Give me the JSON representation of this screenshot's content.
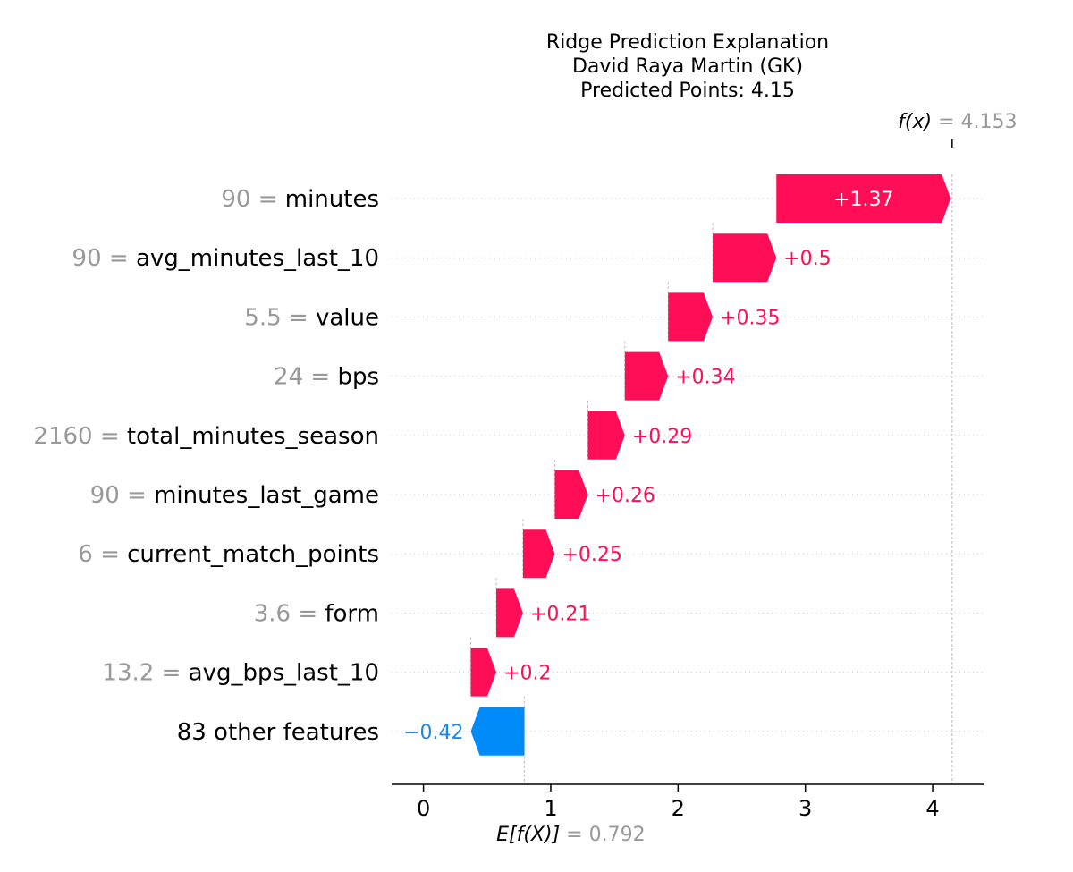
{
  "chart_data": {
    "type": "waterfall",
    "title": "Ridge Prediction Explanation",
    "subtitle_lines": [
      "David Raya Martin (GK)",
      "Predicted Points: 4.15"
    ],
    "base_value": 0.792,
    "base_label_symbol": "E[f(X)]",
    "base_label_value": "= 0.792",
    "final_value": 4.153,
    "final_label_symbol": "f(x)",
    "final_label_value": "= 4.153",
    "xlim": [
      -0.25,
      4.4
    ],
    "x_ticks": [
      0,
      1,
      2,
      3,
      4
    ],
    "x_tick_labels": [
      "0",
      "1",
      "2",
      "3",
      "4"
    ],
    "colors": {
      "positive": "#ff0d57",
      "negative": "#008bfb"
    },
    "features": [
      {
        "value_text": "90 =",
        "name": "minutes",
        "contribution": 1.37,
        "label": "+1.37"
      },
      {
        "value_text": "90 =",
        "name": "avg_minutes_last_10",
        "contribution": 0.5,
        "label": "+0.5"
      },
      {
        "value_text": "5.5 =",
        "name": "value",
        "contribution": 0.35,
        "label": "+0.35"
      },
      {
        "value_text": "24 =",
        "name": "bps",
        "contribution": 0.34,
        "label": "+0.34"
      },
      {
        "value_text": "2160 =",
        "name": "total_minutes_season",
        "contribution": 0.29,
        "label": "+0.29"
      },
      {
        "value_text": "90 =",
        "name": "minutes_last_game",
        "contribution": 0.26,
        "label": "+0.26"
      },
      {
        "value_text": "6 =",
        "name": "current_match_points",
        "contribution": 0.25,
        "label": "+0.25"
      },
      {
        "value_text": "3.6 =",
        "name": "form",
        "contribution": 0.21,
        "label": "+0.21"
      },
      {
        "value_text": "13.2 =",
        "name": "avg_bps_last_10",
        "contribution": 0.2,
        "label": "+0.2"
      },
      {
        "value_text": "",
        "name": "83 other features",
        "contribution": -0.42,
        "label": "−0.42"
      }
    ]
  }
}
